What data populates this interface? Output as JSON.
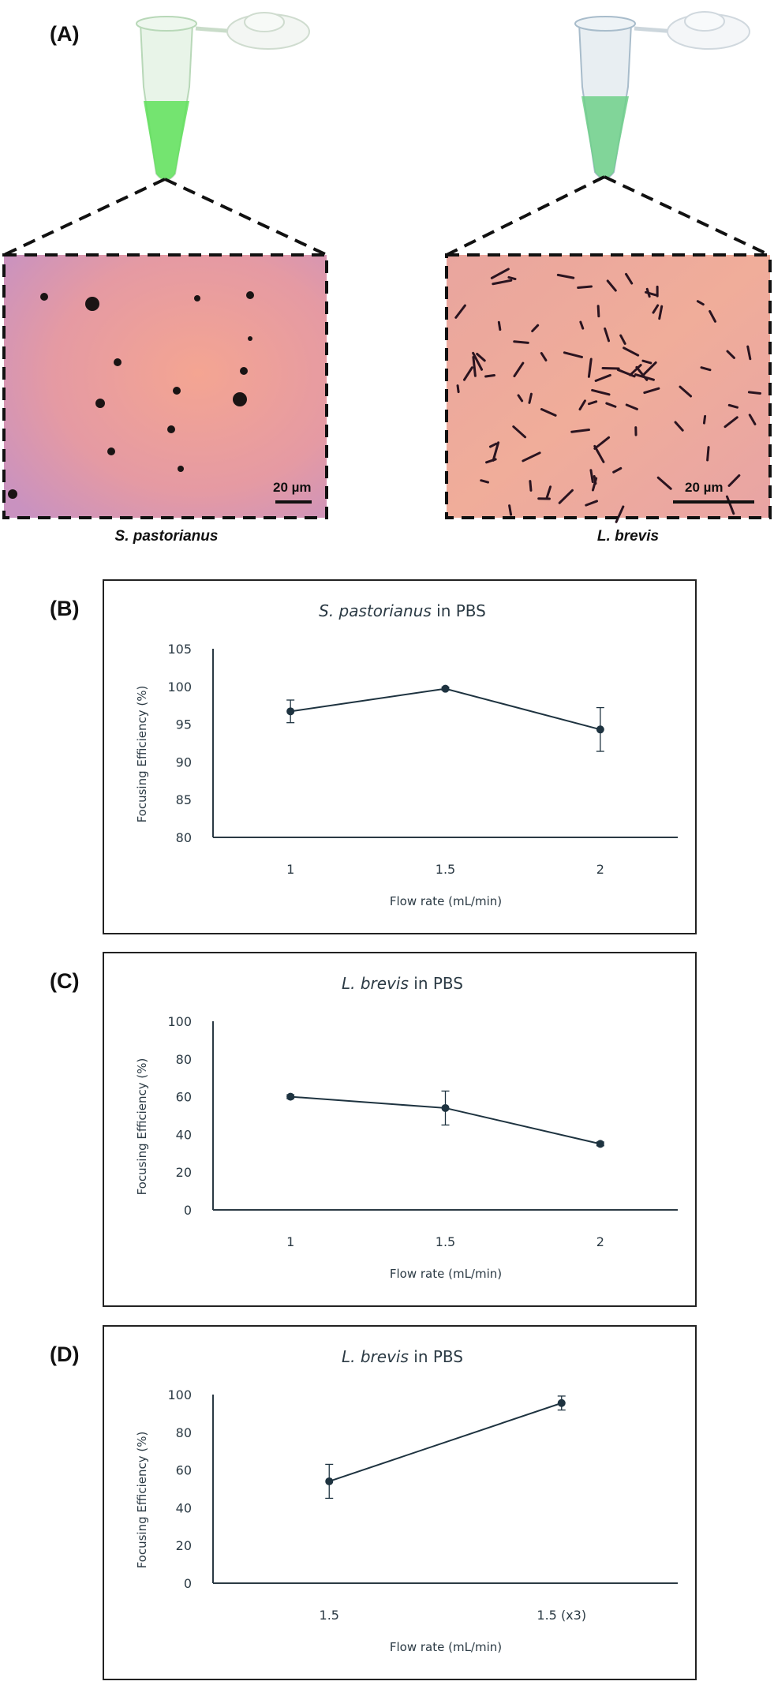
{
  "panel_a": {
    "label": "(A)",
    "left_caption": "S. pastorianus",
    "right_caption": "L. brevis",
    "left_scalebar": "20 µm",
    "right_scalebar": "20 µm",
    "left_tube_color": "#5fe05a",
    "right_tube_color": "#6fd08a",
    "left_background": "#e79a9e",
    "right_background": "#ecaa9c"
  },
  "chart_data": [
    {
      "panel_label": "(B)",
      "type": "line",
      "title_italic": "S. pastorianus",
      "title_rest": " in PBS",
      "xlabel": "Flow rate (mL/min)",
      "ylabel": "Focusing Efficiency (%)",
      "categories": [
        "1",
        "1.5",
        "2"
      ],
      "values": [
        96.7,
        99.7,
        94.3
      ],
      "errors": [
        1.5,
        0.2,
        2.9
      ],
      "ylim": [
        80,
        105
      ],
      "yticks": [
        "80",
        "85",
        "90",
        "95",
        "100",
        "105"
      ],
      "grid": false
    },
    {
      "panel_label": "(C)",
      "type": "line",
      "title_italic": "L. brevis",
      "title_rest": " in PBS",
      "xlabel": "Flow rate (mL/min)",
      "ylabel": "Focusing Efficiency (%)",
      "categories": [
        "1",
        "1.5",
        "2"
      ],
      "values": [
        60,
        54,
        35
      ],
      "errors": [
        1,
        9,
        1
      ],
      "ylim": [
        0,
        100
      ],
      "yticks": [
        "0",
        "20",
        "40",
        "60",
        "80",
        "100"
      ],
      "grid": false
    },
    {
      "panel_label": "(D)",
      "type": "line",
      "title_italic": "L. brevis",
      "title_rest": " in PBS",
      "xlabel": "Flow rate (mL/min)",
      "ylabel": "Focusing Efficiency (%)",
      "categories": [
        "1.5",
        "1.5 (x3)"
      ],
      "values": [
        54,
        95.5
      ],
      "errors": [
        9,
        3.7
      ],
      "ylim": [
        0,
        100
      ],
      "yticks": [
        "0",
        "20",
        "40",
        "60",
        "80",
        "100"
      ],
      "grid": false
    }
  ],
  "colors": {
    "line": "#1e3340",
    "axis": "#2b3a44",
    "text": "#2b3a44"
  }
}
